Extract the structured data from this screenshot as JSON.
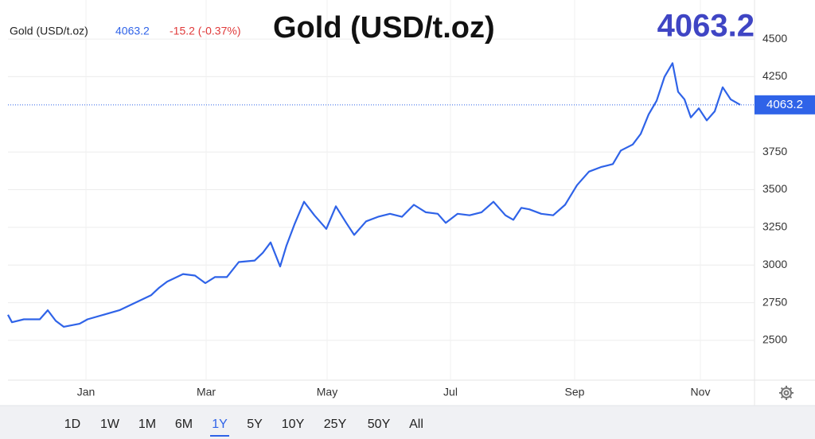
{
  "chart_data": {
    "type": "line",
    "title": "Gold (USD/t.oz)",
    "symbol": "Gold (USD/t.oz)",
    "change": "-15.2 (-0.37%)",
    "x": [
      0,
      5,
      20,
      40,
      50,
      60,
      70,
      90,
      100,
      120,
      140,
      160,
      180,
      190,
      200,
      220,
      235,
      248,
      260,
      275,
      290,
      310,
      320,
      330,
      342,
      350,
      360,
      372,
      385,
      400,
      412,
      425,
      435,
      450,
      465,
      480,
      495,
      510,
      525,
      540,
      550,
      565,
      580,
      595,
      610,
      625,
      635,
      645,
      655,
      670,
      685,
      700,
      715,
      730,
      745,
      760,
      770,
      785,
      795,
      805,
      815,
      825,
      835,
      842,
      850,
      858,
      868,
      878,
      888,
      898,
      908,
      920
    ],
    "series": [
      {
        "name": "Gold",
        "color": "#2f63e8",
        "values": [
          2670,
          2620,
          2640,
          2640,
          2700,
          2630,
          2590,
          2610,
          2640,
          2670,
          2700,
          2750,
          2800,
          2850,
          2890,
          2940,
          2930,
          2880,
          2920,
          2920,
          3020,
          3030,
          3080,
          3150,
          2990,
          3130,
          3270,
          3420,
          3330,
          3240,
          3390,
          3280,
          3200,
          3290,
          3320,
          3340,
          3320,
          3400,
          3350,
          3340,
          3280,
          3340,
          3330,
          3350,
          3420,
          3330,
          3300,
          3380,
          3370,
          3340,
          3330,
          3400,
          3530,
          3620,
          3650,
          3670,
          3760,
          3800,
          3870,
          4000,
          4090,
          4250,
          4340,
          4150,
          4100,
          3980,
          4040,
          3960,
          4020,
          4180,
          4100,
          4063.2
        ]
      }
    ],
    "xlim": [
      0,
      938
    ],
    "xticks": [
      {
        "value": 98,
        "label": "Jan"
      },
      {
        "value": 249,
        "label": "Mar"
      },
      {
        "value": 401,
        "label": "May"
      },
      {
        "value": 556,
        "label": "Jul"
      },
      {
        "value": 712,
        "label": "Sep"
      },
      {
        "value": 870,
        "label": "Nov"
      }
    ],
    "ylim": [
      2236,
      4759
    ],
    "yticks": [
      2500,
      2750,
      3000,
      3250,
      3500,
      3750,
      4250,
      4500
    ],
    "grid": true
  },
  "ui": {
    "ranges": [
      "1D",
      "1W",
      "1M",
      "6M",
      "1Y",
      "5Y",
      "10Y",
      "25Y",
      "50Y",
      "All"
    ],
    "active": 4
  }
}
